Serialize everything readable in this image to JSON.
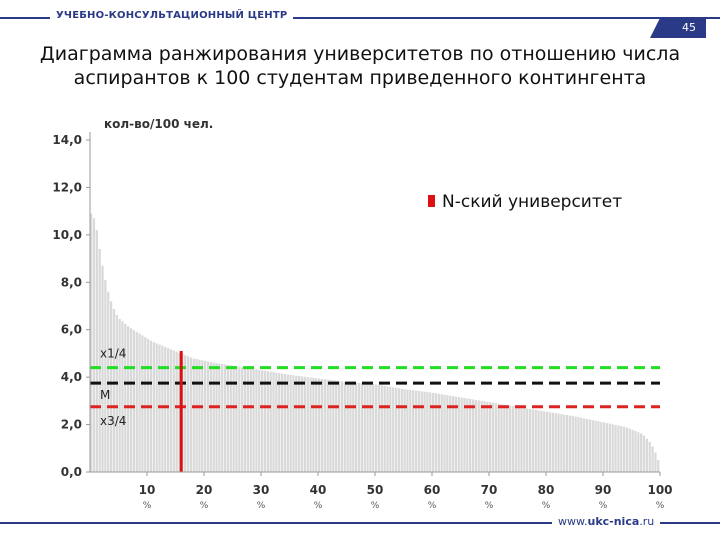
{
  "header": {
    "org": "УЧЕБНО-КОНСУЛЬТАЦИОННЫЙ ЦЕНТР",
    "slide_number": "45",
    "site_prefix": "www.",
    "site_brand": "ukc-nica",
    "site_suffix": ".ru"
  },
  "title": {
    "line1": "Диаграмма ранжирования университетов по отношению числа",
    "line2": "аспирантов к 100 студентам приведенного контингента"
  },
  "chart_data": {
    "type": "bar",
    "ylabel": "кол-во/100 чел.",
    "ylim": [
      0,
      14
    ],
    "yticks": [
      "0,0",
      "2,0",
      "4,0",
      "6,0",
      "8,0",
      "10,0",
      "12,0",
      "14,0"
    ],
    "xlim": [
      0,
      100
    ],
    "xticks": [
      {
        "value": 10,
        "label": "10"
      },
      {
        "value": 20,
        "label": "20"
      },
      {
        "value": 30,
        "label": "30"
      },
      {
        "value": 40,
        "label": "40"
      },
      {
        "value": 50,
        "label": "50"
      },
      {
        "value": 60,
        "label": "60"
      },
      {
        "value": 70,
        "label": "70"
      },
      {
        "value": 80,
        "label": "80"
      },
      {
        "value": 90,
        "label": "90"
      },
      {
        "value": 100,
        "label": "100"
      }
    ],
    "xtick_unit": "%",
    "bar_color": "#d9d9d9",
    "bar_profile": [
      [
        0,
        11.0
      ],
      [
        1,
        10.6
      ],
      [
        2,
        9.0
      ],
      [
        3,
        7.8
      ],
      [
        4,
        7.0
      ],
      [
        5,
        6.5
      ],
      [
        7,
        6.1
      ],
      [
        9,
        5.8
      ],
      [
        11,
        5.5
      ],
      [
        13,
        5.3
      ],
      [
        15,
        5.1
      ],
      [
        18,
        4.8
      ],
      [
        22,
        4.6
      ],
      [
        26,
        4.45
      ],
      [
        30,
        4.3
      ],
      [
        35,
        4.1
      ],
      [
        40,
        3.95
      ],
      [
        45,
        3.8
      ],
      [
        50,
        3.7
      ],
      [
        55,
        3.5
      ],
      [
        60,
        3.35
      ],
      [
        65,
        3.15
      ],
      [
        70,
        2.95
      ],
      [
        75,
        2.75
      ],
      [
        80,
        2.55
      ],
      [
        85,
        2.35
      ],
      [
        90,
        2.1
      ],
      [
        94,
        1.9
      ],
      [
        97,
        1.6
      ],
      [
        98.5,
        1.2
      ],
      [
        99.5,
        0.7
      ],
      [
        100,
        0.3
      ]
    ],
    "reference_lines": [
      {
        "label": "x1/4",
        "value": 4.4,
        "color": "#22dd22"
      },
      {
        "label": "M",
        "value": 3.75,
        "color": "#111111"
      },
      {
        "label": "x3/4",
        "value": 2.75,
        "color": "#dd2222"
      }
    ],
    "highlight": {
      "x": 16,
      "value": 5.1,
      "color": "#dd1111"
    },
    "legend": {
      "label": "N-ский университет",
      "color": "#dd1111",
      "position": "top-right"
    }
  }
}
